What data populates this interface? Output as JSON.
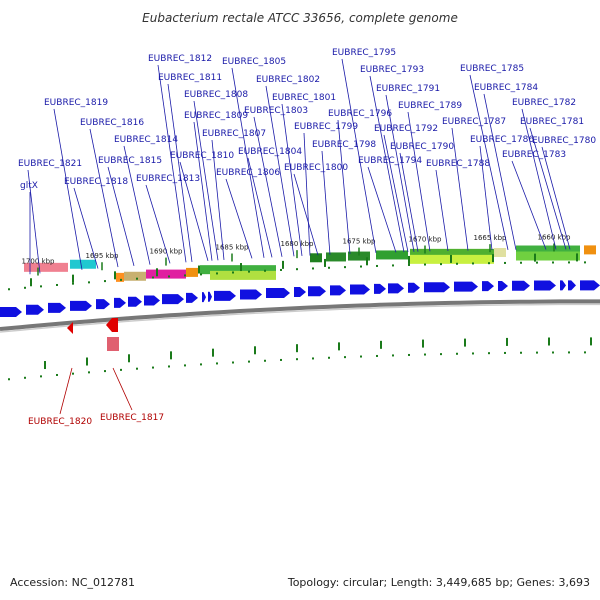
{
  "title": "Eubacterium rectale ATCC 33656, complete genome",
  "accession": "Accession: NC_012781",
  "summary": "Topology: circular; Length: 3,449,685 bp; Genes: 3,693",
  "colors": {
    "forward_gene": "#1010e0",
    "reverse_gene": "#e00000",
    "forward_label": "#1a1aa8",
    "reverse_label": "#b00000",
    "tick": "#1a7a1a",
    "backbone": "#777777"
  },
  "ticks": [
    {
      "label": "1700 kbp",
      "kbp": 1700
    },
    {
      "label": "1695 kbp",
      "kbp": 1695
    },
    {
      "label": "1690 kbp",
      "kbp": 1690
    },
    {
      "label": "1685 kbp",
      "kbp": 1685
    },
    {
      "label": "1680 kbp",
      "kbp": 1680
    },
    {
      "label": "1675 kbp",
      "kbp": 1675
    },
    {
      "label": "1670 kbp",
      "kbp": 1670
    },
    {
      "label": "1665 kbp",
      "kbp": 1665
    },
    {
      "label": "1660 kbp",
      "kbp": 1660
    }
  ],
  "forward_labels": [
    "gltX",
    "EUBREC_1821",
    "EUBREC_1819",
    "EUBREC_1818",
    "EUBREC_1816",
    "EUBREC_1815",
    "EUBREC_1814",
    "EUBREC_1813",
    "EUBREC_1812",
    "EUBREC_1811",
    "EUBREC_1810",
    "EUBREC_1809",
    "EUBREC_1808",
    "EUBREC_1807",
    "EUBREC_1806",
    "EUBREC_1805",
    "EUBREC_1804",
    "EUBREC_1803",
    "EUBREC_1802",
    "EUBREC_1801",
    "EUBREC_1800",
    "EUBREC_1799",
    "EUBREC_1798",
    "EUBREC_1796",
    "EUBREC_1795",
    "EUBREC_1794",
    "EUBREC_1793",
    "EUBREC_1792",
    "EUBREC_1791",
    "EUBREC_1790",
    "EUBREC_1789",
    "EUBREC_1788",
    "EUBREC_1787",
    "EUBREC_1786",
    "EUBREC_1785",
    "EUBREC_1784",
    "EUBREC_1783",
    "EUBREC_1782",
    "EUBREC_1781",
    "EUBREC_1780"
  ],
  "reverse_labels": [
    "EUBREC_1820",
    "EUBREC_1817"
  ]
}
